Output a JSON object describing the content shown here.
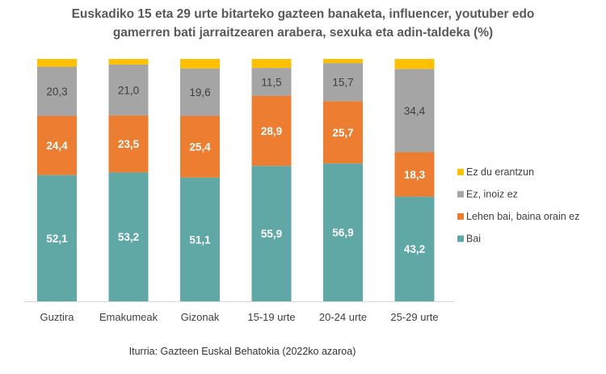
{
  "chart_data": {
    "type": "bar",
    "stacked": true,
    "title": "Euskadiko 15 eta 29 urte bitarteko gazteen banaketa, influencer, youtuber edo gamerren bati jarraitzearen arabera, sexuka eta adin-taldeka (%)",
    "title_lines": [
      "Euskadiko  15 eta 29 urte bitarteko gazteen banaketa, influencer, youtuber edo",
      "gamerren bati jarraitzearen arabera, sexuka eta adin-taldeka (%)"
    ],
    "categories": [
      "Guztira",
      "Emakumeak",
      "Gizonak",
      "15-19 urte",
      "20-24 urte",
      "25-29 urte"
    ],
    "series": [
      {
        "name": "Bai",
        "color": "#5fa8a5",
        "values": [
          52.1,
          53.2,
          51.1,
          55.9,
          56.9,
          43.2
        ],
        "labels": [
          "52,1",
          "53,2",
          "51,1",
          "55,9",
          "56,9",
          "43,2"
        ]
      },
      {
        "name": "Lehen bai, baina orain ez",
        "color": "#ed7d31",
        "values": [
          24.4,
          23.5,
          25.4,
          28.9,
          25.7,
          18.3
        ],
        "labels": [
          "24,4",
          "23,5",
          "25,4",
          "28,9",
          "25,7",
          "18,3"
        ]
      },
      {
        "name": "Ez, inoiz ez",
        "color": "#a5a5a5",
        "values": [
          20.3,
          21.0,
          19.6,
          11.5,
          15.7,
          34.4
        ],
        "labels": [
          "20,3",
          "21,0",
          "19,6",
          "11,5",
          "15,7",
          "34,4"
        ]
      },
      {
        "name": "Ez du erantzun",
        "color": "#ffc000",
        "values": [
          3.2,
          2.3,
          3.9,
          3.7,
          1.7,
          4.1
        ],
        "labels": [
          "",
          "",
          "",
          "",
          "",
          ""
        ]
      }
    ],
    "ylim": [
      0,
      100
    ],
    "grid": false,
    "legend": "right"
  },
  "source": "Iturria: Gazteen Euskal Behatokia (2022ko azaroa)"
}
